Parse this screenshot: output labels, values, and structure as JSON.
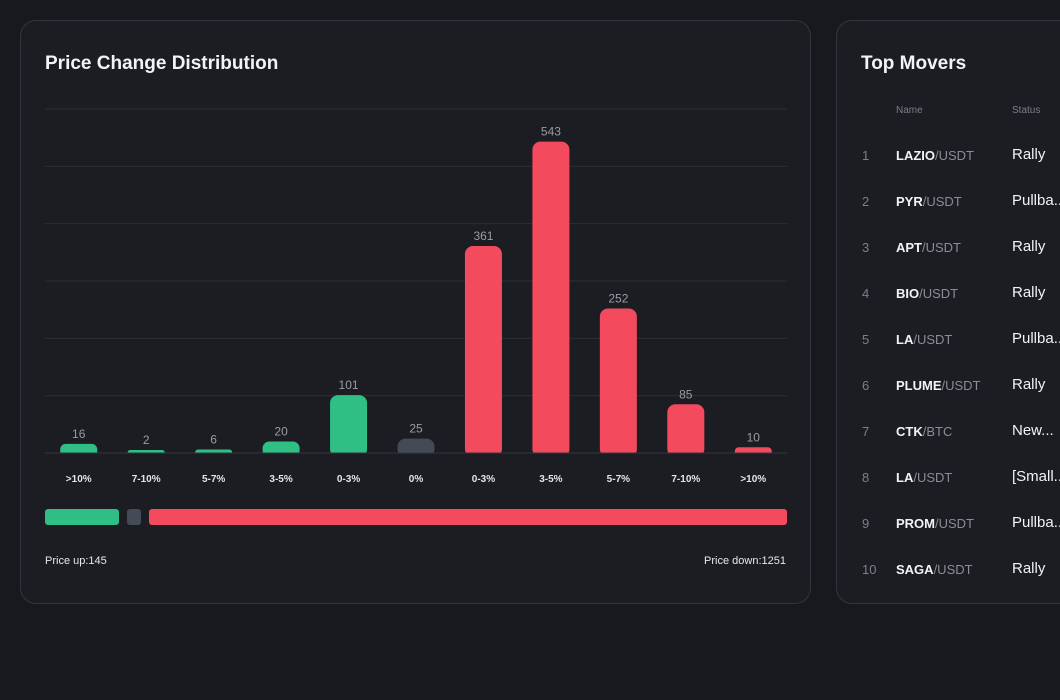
{
  "distribution": {
    "title": "Price Change Distribution",
    "summary": {
      "up_text": "Price up:145",
      "down_text": "Price down:1251",
      "up": 145,
      "flat": 25,
      "down": 1251
    }
  },
  "chart_data": {
    "type": "bar",
    "title": "Price Change Distribution",
    "categories": [
      ">10%",
      "7-10%",
      "5-7%",
      "3-5%",
      "0-3%",
      "0%",
      "0-3%",
      "3-5%",
      "5-7%",
      "7-10%",
      ">10%"
    ],
    "values": [
      16,
      2,
      6,
      20,
      101,
      25,
      361,
      543,
      252,
      85,
      10
    ],
    "groups": [
      "up",
      "up",
      "up",
      "up",
      "up",
      "flat",
      "down",
      "down",
      "down",
      "down",
      "down"
    ],
    "ylim": [
      0,
      600
    ],
    "grid": true,
    "colors": {
      "up": "#2fbf84",
      "flat": "#454a57",
      "down": "#f34a5e"
    }
  },
  "movers": {
    "title": "Top Movers",
    "headers": {
      "name": "Name",
      "status": "Status"
    },
    "rows": [
      {
        "rank": "1",
        "base": "LAZIO",
        "quote": "/USDT",
        "status": "Rally"
      },
      {
        "rank": "2",
        "base": "PYR",
        "quote": "/USDT",
        "status": "Pullba..."
      },
      {
        "rank": "3",
        "base": "APT",
        "quote": "/USDT",
        "status": "Rally"
      },
      {
        "rank": "4",
        "base": "BIO",
        "quote": "/USDT",
        "status": "Rally"
      },
      {
        "rank": "5",
        "base": "LA",
        "quote": "/USDT",
        "status": "Pullba..."
      },
      {
        "rank": "6",
        "base": "PLUME",
        "quote": "/USDT",
        "status": "Rally"
      },
      {
        "rank": "7",
        "base": "CTK",
        "quote": "/BTC",
        "status": "New..."
      },
      {
        "rank": "8",
        "base": "LA",
        "quote": "/USDT",
        "status": "[Small..."
      },
      {
        "rank": "9",
        "base": "PROM",
        "quote": "/USDT",
        "status": "Pullba..."
      },
      {
        "rank": "10",
        "base": "SAGA",
        "quote": "/USDT",
        "status": "Rally"
      }
    ]
  }
}
